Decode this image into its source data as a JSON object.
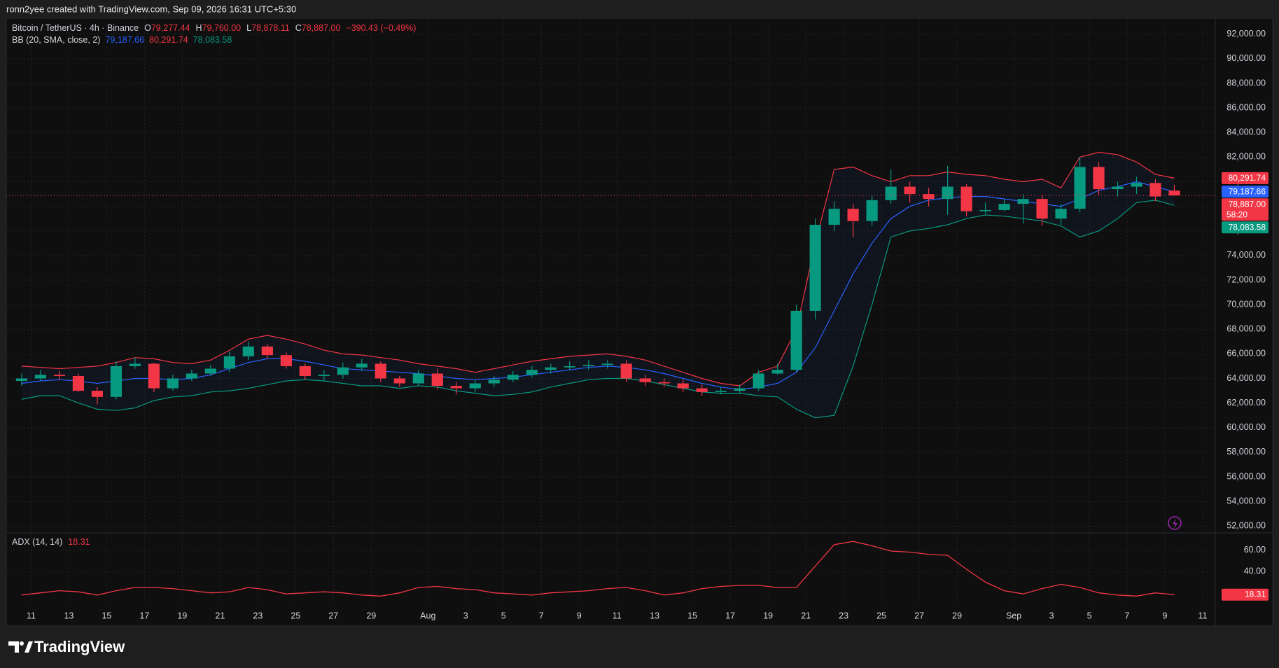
{
  "header": {
    "text": "ronn2yee created with TradingView.com, Sep 09, 2026 16:31 UTC+5:30"
  },
  "footer": {
    "brand": "TradingView"
  },
  "chart_data": [
    {
      "type": "candlestick",
      "symbol": "Bitcoin / TetherUS · 4h · Binance",
      "ohlc_legend": [
        {
          "key": "O",
          "label": "79,277.44"
        },
        {
          "key": "H",
          "label": "79,760.00"
        },
        {
          "key": "L",
          "label": "78,878.11"
        },
        {
          "key": "C",
          "label": "78,887.00"
        }
      ],
      "change": "−390.43 (−0.49%)",
      "indicator": "BB (20, SMA, close, 2)",
      "last_price_label": "78,887.00",
      "countdown": "58:20",
      "up_color": "#089981",
      "down_color": "#f23645",
      "x": [
        "2026-07-10",
        "2026-07-11",
        "2026-07-12",
        "2026-07-13",
        "2026-07-14",
        "2026-07-15",
        "2026-07-16",
        "2026-07-17",
        "2026-07-18",
        "2026-07-19",
        "2026-07-20",
        "2026-07-21",
        "2026-07-22",
        "2026-07-23",
        "2026-07-24",
        "2026-07-25",
        "2026-07-26",
        "2026-07-27",
        "2026-07-28",
        "2026-07-29",
        "2026-07-30",
        "2026-07-31",
        "2026-08-01",
        "2026-08-02",
        "2026-08-03",
        "2026-08-04",
        "2026-08-05",
        "2026-08-06",
        "2026-08-07",
        "2026-08-08",
        "2026-08-09",
        "2026-08-10",
        "2026-08-11",
        "2026-08-12",
        "2026-08-13",
        "2026-08-14",
        "2026-08-15",
        "2026-08-16",
        "2026-08-17",
        "2026-08-18",
        "2026-08-19",
        "2026-08-20",
        "2026-08-21",
        "2026-08-22",
        "2026-08-23",
        "2026-08-24",
        "2026-08-25",
        "2026-08-26",
        "2026-08-27",
        "2026-08-28",
        "2026-08-29",
        "2026-08-30",
        "2026-08-31",
        "2026-09-01",
        "2026-09-02",
        "2026-09-03",
        "2026-09-04",
        "2026-09-05",
        "2026-09-06",
        "2026-09-07",
        "2026-09-08",
        "2026-09-09"
      ],
      "open": [
        63800,
        64000,
        64300,
        64200,
        63000,
        62500,
        65000,
        65200,
        63200,
        64000,
        64400,
        64800,
        65800,
        66600,
        65900,
        65000,
        64200,
        64300,
        64900,
        65200,
        64000,
        63600,
        64400,
        63400,
        63200,
        63600,
        63900,
        64300,
        64700,
        64900,
        65000,
        65100,
        65200,
        64000,
        63700,
        63600,
        63200,
        62900,
        63000,
        63200,
        64400,
        64700,
        69500,
        76500,
        77800,
        76800,
        78500,
        79600,
        79000,
        78600,
        79600,
        77600,
        77700,
        78200,
        78600,
        77000,
        77800,
        81200,
        79400,
        79600,
        79900,
        79277.44
      ],
      "high": [
        64400,
        64700,
        64600,
        64400,
        63300,
        65400,
        65700,
        65300,
        64300,
        64700,
        65100,
        66200,
        67000,
        66800,
        66100,
        65200,
        64700,
        65300,
        65600,
        65400,
        64200,
        64700,
        64800,
        63700,
        63900,
        64200,
        64600,
        65000,
        65200,
        65400,
        65500,
        65500,
        65500,
        64300,
        64000,
        63900,
        63500,
        63300,
        63500,
        64700,
        65200,
        70000,
        77000,
        78400,
        78200,
        78900,
        81000,
        80000,
        79500,
        81300,
        79800,
        78300,
        78600,
        79000,
        78900,
        78200,
        82000,
        81600,
        80000,
        80400,
        80200,
        79760
      ],
      "low": [
        63400,
        63800,
        63900,
        62900,
        61900,
        62300,
        64800,
        62900,
        63000,
        63800,
        64200,
        64500,
        65500,
        65600,
        64800,
        63900,
        63800,
        64000,
        64600,
        63700,
        63300,
        63400,
        63100,
        62700,
        62900,
        63300,
        63700,
        64100,
        64400,
        64700,
        64700,
        64800,
        63700,
        63400,
        63300,
        62900,
        62600,
        62700,
        62800,
        63000,
        64300,
        64500,
        68800,
        76000,
        75500,
        76400,
        78200,
        78300,
        78000,
        77300,
        77200,
        77400,
        77600,
        76600,
        76400,
        76500,
        77500,
        78900,
        78800,
        79000,
        78400,
        78878.11
      ],
      "close": [
        64000,
        64300,
        64200,
        63000,
        62500,
        65000,
        65200,
        63200,
        64000,
        64400,
        64800,
        65800,
        66600,
        65900,
        65000,
        64200,
        64300,
        64900,
        65200,
        64000,
        63600,
        64400,
        63400,
        63200,
        63600,
        63900,
        64300,
        64700,
        64900,
        65000,
        65100,
        65200,
        64000,
        63700,
        63600,
        63200,
        62900,
        63000,
        63200,
        64400,
        64700,
        69500,
        76500,
        77800,
        76800,
        78500,
        79600,
        79000,
        78600,
        79600,
        77600,
        77700,
        78200,
        78600,
        77000,
        77800,
        81200,
        79400,
        79600,
        79900,
        78800,
        78887
      ],
      "series": [
        {
          "color": "#2962ff",
          "last_label": "79,187.66",
          "values": [
            63600,
            63800,
            63900,
            63800,
            63600,
            63800,
            64000,
            64000,
            63900,
            64000,
            64300,
            64800,
            65300,
            65600,
            65600,
            65400,
            65100,
            64800,
            64700,
            64600,
            64500,
            64400,
            64200,
            64000,
            63900,
            64000,
            64100,
            64300,
            64500,
            64700,
            64900,
            65000,
            64900,
            64700,
            64400,
            64000,
            63600,
            63300,
            63100,
            63300,
            63600,
            64500,
            66500,
            69500,
            72500,
            75000,
            77000,
            78000,
            78500,
            78700,
            78800,
            78800,
            78600,
            78400,
            78200,
            78000,
            78600,
            79300,
            79600,
            80000,
            79600,
            79187.66
          ]
        },
        {
          "color": "#f23645",
          "last_label": "80,291.74",
          "values": [
            65000,
            64900,
            64800,
            64900,
            65000,
            65300,
            65700,
            65600,
            65300,
            65200,
            65500,
            66300,
            67200,
            67500,
            67200,
            66800,
            66300,
            66000,
            65900,
            65700,
            65500,
            65200,
            65000,
            64800,
            64500,
            64800,
            65100,
            65400,
            65600,
            65800,
            65900,
            66000,
            65800,
            65500,
            65000,
            64500,
            64000,
            63600,
            63400,
            64500,
            65000,
            68000,
            75000,
            81000,
            81200,
            80500,
            80000,
            80500,
            80500,
            80800,
            80600,
            80500,
            80200,
            80000,
            80200,
            79500,
            82000,
            82400,
            82200,
            81600,
            80600,
            80291.74
          ]
        },
        {
          "color": "#089981",
          "last_label": "78,083.58",
          "values": [
            62300,
            62600,
            62600,
            62000,
            61500,
            61400,
            61600,
            62200,
            62500,
            62600,
            62900,
            63000,
            63200,
            63500,
            63800,
            63900,
            63800,
            63600,
            63400,
            63400,
            63200,
            63400,
            63300,
            63000,
            62800,
            62600,
            62700,
            62900,
            63300,
            63600,
            63900,
            64000,
            64000,
            63800,
            63500,
            63200,
            62900,
            62800,
            62800,
            62600,
            62500,
            61500,
            60800,
            61000,
            65000,
            70000,
            75500,
            76000,
            76200,
            76500,
            77000,
            77300,
            77200,
            77000,
            76800,
            76400,
            75500,
            76000,
            77000,
            78300,
            78500,
            78083.58
          ]
        }
      ],
      "fill_color": "rgba(41,98,255,0.06)",
      "xlim": [
        "2026-07-09T16:30:00Z",
        "2026-09-11T16:00:00Z"
      ],
      "xticks": [
        {
          "value": "2026-07-11",
          "label": "11"
        },
        {
          "value": "2026-07-13",
          "label": "13"
        },
        {
          "value": "2026-07-15",
          "label": "15"
        },
        {
          "value": "2026-07-17",
          "label": "17"
        },
        {
          "value": "2026-07-19",
          "label": "19"
        },
        {
          "value": "2026-07-21",
          "label": "21"
        },
        {
          "value": "2026-07-23",
          "label": "23"
        },
        {
          "value": "2026-07-25",
          "label": "25"
        },
        {
          "value": "2026-07-27",
          "label": "27"
        },
        {
          "value": "2026-07-29",
          "label": "29"
        },
        {
          "value": "2026-08-01",
          "label": "Aug"
        },
        {
          "value": "2026-08-03",
          "label": "3"
        },
        {
          "value": "2026-08-05",
          "label": "5"
        },
        {
          "value": "2026-08-07",
          "label": "7"
        },
        {
          "value": "2026-08-09",
          "label": "9"
        },
        {
          "value": "2026-08-11",
          "label": "11"
        },
        {
          "value": "2026-08-13",
          "label": "13"
        },
        {
          "value": "2026-08-15",
          "label": "15"
        },
        {
          "value": "2026-08-17",
          "label": "17"
        },
        {
          "value": "2026-08-19",
          "label": "19"
        },
        {
          "value": "2026-08-21",
          "label": "21"
        },
        {
          "value": "2026-08-23",
          "label": "23"
        },
        {
          "value": "2026-08-25",
          "label": "25"
        },
        {
          "value": "2026-08-27",
          "label": "27"
        },
        {
          "value": "2026-08-29",
          "label": "29"
        },
        {
          "value": "2026-09-01",
          "label": "Sep"
        },
        {
          "value": "2026-09-03",
          "label": "3"
        },
        {
          "value": "2026-09-05",
          "label": "5"
        },
        {
          "value": "2026-09-07",
          "label": "7"
        },
        {
          "value": "2026-09-09",
          "label": "9"
        },
        {
          "value": "2026-09-11",
          "label": "11"
        }
      ],
      "ylim": [
        51500,
        93300
      ],
      "yticks": [
        {
          "value": 52000,
          "label": "52,000.00"
        },
        {
          "value": 54000,
          "label": "54,000.00"
        },
        {
          "value": 56000,
          "label": "56,000.00"
        },
        {
          "value": 58000,
          "label": "58,000.00"
        },
        {
          "value": 60000,
          "label": "60,000.00"
        },
        {
          "value": 62000,
          "label": "62,000.00"
        },
        {
          "value": 64000,
          "label": "64,000.00"
        },
        {
          "value": 66000,
          "label": "66,000.00"
        },
        {
          "value": 68000,
          "label": "68,000.00"
        },
        {
          "value": 70000,
          "label": "70,000.00"
        },
        {
          "value": 72000,
          "label": "72,000.00"
        },
        {
          "value": 74000,
          "label": "74,000.00"
        },
        {
          "value": 76000,
          "label": "76,000.00"
        },
        {
          "value": 78000,
          "label": "78,000.00"
        },
        {
          "value": 80000,
          "label": "80,000.00"
        },
        {
          "value": 82000,
          "label": "82,000.00"
        },
        {
          "value": 84000,
          "label": "84,000.00"
        },
        {
          "value": 86000,
          "label": "86,000.00"
        },
        {
          "value": 88000,
          "label": "88,000.00"
        },
        {
          "value": 90000,
          "label": "90,000.00"
        },
        {
          "value": 92000,
          "label": "92,000.00"
        }
      ],
      "grid": true
    },
    {
      "type": "line",
      "title": "ADX (14, 14)",
      "color": "#f23645",
      "x": [
        "2026-07-10",
        "2026-07-11",
        "2026-07-12",
        "2026-07-13",
        "2026-07-14",
        "2026-07-15",
        "2026-07-16",
        "2026-07-17",
        "2026-07-18",
        "2026-07-19",
        "2026-07-20",
        "2026-07-21",
        "2026-07-22",
        "2026-07-23",
        "2026-07-24",
        "2026-07-25",
        "2026-07-26",
        "2026-07-27",
        "2026-07-28",
        "2026-07-29",
        "2026-07-30",
        "2026-07-31",
        "2026-08-01",
        "2026-08-02",
        "2026-08-03",
        "2026-08-04",
        "2026-08-05",
        "2026-08-06",
        "2026-08-07",
        "2026-08-08",
        "2026-08-09",
        "2026-08-10",
        "2026-08-11",
        "2026-08-12",
        "2026-08-13",
        "2026-08-14",
        "2026-08-15",
        "2026-08-16",
        "2026-08-17",
        "2026-08-18",
        "2026-08-19",
        "2026-08-20",
        "2026-08-21",
        "2026-08-22",
        "2026-08-23",
        "2026-08-24",
        "2026-08-25",
        "2026-08-26",
        "2026-08-27",
        "2026-08-28",
        "2026-08-29",
        "2026-08-30",
        "2026-08-31",
        "2026-09-01",
        "2026-09-02",
        "2026-09-03",
        "2026-09-04",
        "2026-09-05",
        "2026-09-06",
        "2026-09-07",
        "2026-09-08",
        "2026-09-09"
      ],
      "values": [
        18,
        20,
        22,
        21,
        18,
        22,
        25,
        25,
        24,
        22,
        20,
        21,
        25,
        23,
        19,
        20,
        21,
        20,
        18,
        17,
        20,
        25,
        26,
        24,
        23,
        20,
        19,
        18,
        20,
        21,
        22,
        24,
        25,
        22,
        18,
        20,
        24,
        26,
        27,
        27,
        25,
        25,
        45,
        65,
        68,
        64,
        59,
        58,
        56,
        55,
        42,
        30,
        22,
        19,
        24,
        28,
        25,
        20,
        18,
        17,
        20,
        18.31
      ],
      "xlim": [
        "2026-07-09T16:30:00Z",
        "2026-09-11T16:00:00Z"
      ],
      "ylim": [
        10,
        76
      ],
      "yticks": [
        {
          "value": 40,
          "label": "40.00"
        },
        {
          "value": 60,
          "label": "60.00"
        }
      ],
      "grid": true
    }
  ]
}
